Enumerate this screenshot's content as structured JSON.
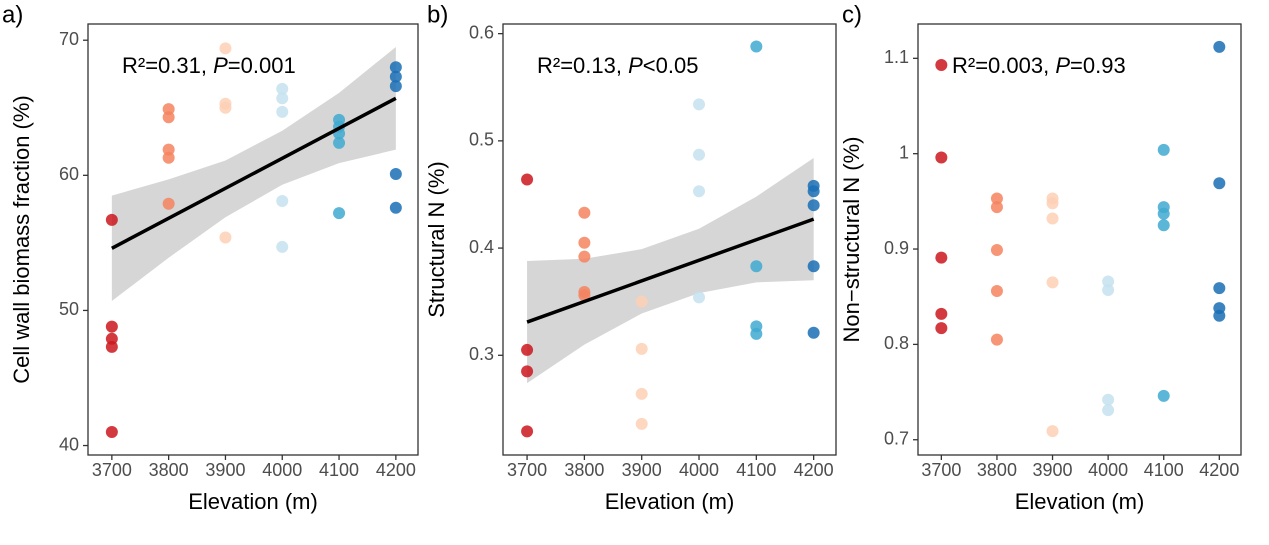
{
  "chart_data": [
    {
      "type": "scatter",
      "panel_label": "a)",
      "x_label": "Elevation (m)",
      "y_label": "Cell wall biomass fraction (%)",
      "annotation": [
        "R²=0.31, ",
        "P",
        "=0.001"
      ],
      "xlim": [
        3658,
        4239
      ],
      "xticks": [
        3700,
        3800,
        3900,
        4000,
        4100,
        4200
      ],
      "ylim": [
        39.3,
        71.2
      ],
      "yticks": [
        40,
        50,
        60,
        70
      ],
      "series": [
        {
          "color": "#cb181d",
          "x": [
            3700,
            3700,
            3700,
            3700,
            3700
          ],
          "values": [
            56.7,
            48.8,
            47.9,
            47.3,
            41.0
          ]
        },
        {
          "color": "#f4845f",
          "x": [
            3800,
            3800,
            3800,
            3800,
            3800
          ],
          "values": [
            64.9,
            64.3,
            61.9,
            61.3,
            57.9
          ]
        },
        {
          "color": "#fdd0b5",
          "x": [
            3900,
            3900,
            3900,
            3900
          ],
          "values": [
            69.4,
            65.3,
            65.0,
            55.4
          ]
        },
        {
          "color": "#c6e2ef",
          "x": [
            4000,
            4000,
            4000,
            4000,
            4000
          ],
          "values": [
            66.4,
            65.7,
            64.7,
            58.1,
            54.7
          ]
        },
        {
          "color": "#3fa9d0",
          "x": [
            4100,
            4100,
            4100,
            4100,
            4100
          ],
          "values": [
            64.1,
            63.6,
            63.1,
            62.4,
            57.2
          ]
        },
        {
          "color": "#1a6fb5",
          "x": [
            4200,
            4200,
            4200,
            4200,
            4200
          ],
          "values": [
            68.0,
            67.3,
            66.6,
            60.1,
            57.6
          ]
        }
      ],
      "fit": {
        "x": [
          3700,
          4200
        ],
        "y": [
          54.6,
          65.7
        ]
      },
      "band": {
        "x": [
          3700,
          3800,
          3900,
          4000,
          4100,
          4200
        ],
        "lower": [
          50.7,
          53.9,
          56.9,
          59.3,
          60.9,
          61.9
        ],
        "upper": [
          58.5,
          59.7,
          61.1,
          63.3,
          66.1,
          69.5
        ]
      }
    },
    {
      "type": "scatter",
      "panel_label": "b)",
      "x_label": "Elevation (m)",
      "y_label": "Structural N (%)",
      "annotation": [
        "R²=0.13, ",
        "P",
        "<0.05"
      ],
      "xlim": [
        3658,
        4239
      ],
      "xticks": [
        3700,
        3800,
        3900,
        4000,
        4100,
        4200
      ],
      "ylim": [
        0.207,
        0.609
      ],
      "yticks": [
        0.3,
        0.4,
        0.5,
        0.6
      ],
      "series": [
        {
          "color": "#cb181d",
          "x": [
            3700,
            3700,
            3700,
            3700
          ],
          "values": [
            0.464,
            0.305,
            0.285,
            0.229
          ]
        },
        {
          "color": "#f4845f",
          "x": [
            3800,
            3800,
            3800,
            3800,
            3800
          ],
          "values": [
            0.433,
            0.405,
            0.392,
            0.359,
            0.356
          ]
        },
        {
          "color": "#fdd0b5",
          "x": [
            3900,
            3900,
            3900,
            3900
          ],
          "values": [
            0.35,
            0.306,
            0.264,
            0.236
          ]
        },
        {
          "color": "#c6e2ef",
          "x": [
            4000,
            4000,
            4000,
            4000
          ],
          "values": [
            0.534,
            0.487,
            0.453,
            0.354
          ]
        },
        {
          "color": "#3fa9d0",
          "x": [
            4100,
            4100,
            4100,
            4100
          ],
          "values": [
            0.588,
            0.383,
            0.327,
            0.32
          ]
        },
        {
          "color": "#1a6fb5",
          "x": [
            4200,
            4200,
            4200,
            4200,
            4200
          ],
          "values": [
            0.458,
            0.453,
            0.44,
            0.383,
            0.321
          ]
        }
      ],
      "fit": {
        "x": [
          3700,
          4200
        ],
        "y": [
          0.331,
          0.427
        ]
      },
      "band": {
        "x": [
          3700,
          3800,
          3900,
          4000,
          4100,
          4200
        ],
        "lower": [
          0.274,
          0.31,
          0.339,
          0.358,
          0.368,
          0.37
        ],
        "upper": [
          0.388,
          0.39,
          0.399,
          0.418,
          0.448,
          0.484
        ]
      }
    },
    {
      "type": "scatter",
      "panel_label": "c)",
      "x_label": "Elevation (m)",
      "y_label": "Non−structural N (%)",
      "annotation": [
        "R²=0.003, ",
        "P",
        "=0.93"
      ],
      "xlim": [
        3658,
        4239
      ],
      "xticks": [
        3700,
        3800,
        3900,
        4000,
        4100,
        4200
      ],
      "ylim": [
        0.684,
        1.136
      ],
      "yticks": [
        0.7,
        0.8,
        0.9,
        1.0,
        1.1
      ],
      "series": [
        {
          "color": "#cb181d",
          "x": [
            3700,
            3700,
            3700,
            3700,
            3700
          ],
          "values": [
            1.093,
            0.996,
            0.891,
            0.832,
            0.817
          ]
        },
        {
          "color": "#f4845f",
          "x": [
            3800,
            3800,
            3800,
            3800,
            3800
          ],
          "values": [
            0.953,
            0.944,
            0.899,
            0.856,
            0.805
          ]
        },
        {
          "color": "#fdd0b5",
          "x": [
            3900,
            3900,
            3900,
            3900,
            3900
          ],
          "values": [
            0.953,
            0.948,
            0.932,
            0.865,
            0.709
          ]
        },
        {
          "color": "#c6e2ef",
          "x": [
            4000,
            4000,
            4000,
            4000
          ],
          "values": [
            0.866,
            0.857,
            0.742,
            0.731
          ]
        },
        {
          "color": "#3fa9d0",
          "x": [
            4100,
            4100,
            4100,
            4100,
            4100
          ],
          "values": [
            1.004,
            0.944,
            0.937,
            0.925,
            0.746
          ]
        },
        {
          "color": "#1a6fb5",
          "x": [
            4200,
            4200,
            4200,
            4200,
            4200
          ],
          "values": [
            1.112,
            0.969,
            0.859,
            0.838,
            0.83
          ]
        }
      ]
    }
  ]
}
